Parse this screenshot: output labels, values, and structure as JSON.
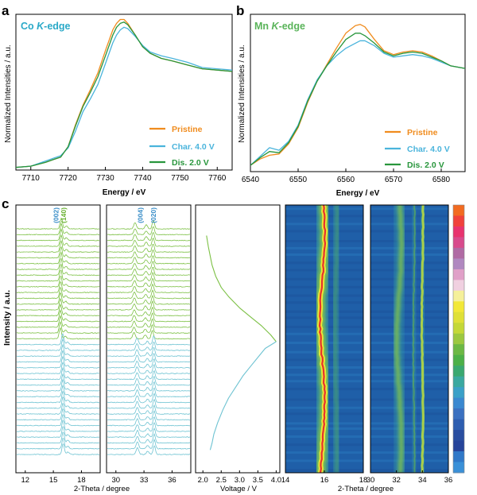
{
  "panel_labels": {
    "a": "a",
    "b": "b",
    "c": "c"
  },
  "colors": {
    "pristine": "#f08c1e",
    "charge": "#4ab4dc",
    "discharge": "#28963c",
    "xrd_green": "#7cc044",
    "xrd_cyan": "#6ec3d2",
    "co_title": "#2aa9c8",
    "mn_title": "#5ab45a",
    "peak_label_green": "#68b030",
    "peak_label_blue": "#3a8ec8",
    "map_bg": "#1f5fa8"
  },
  "chart_data": [
    {
      "id": "a",
      "type": "line",
      "title_prefix": "Co ",
      "title_k": "K",
      "title_suffix": "-edge",
      "xlabel": "Energy / eV",
      "ylabel": "Normalized Intensities / a.u.",
      "xlim": [
        7706,
        7764
      ],
      "ylim": [
        0,
        1.2
      ],
      "xticks": [
        "7710",
        "7720",
        "7730",
        "7740",
        "7750",
        "7760"
      ],
      "xtick_values": [
        7710,
        7720,
        7730,
        7740,
        7750,
        7760
      ],
      "legend": [
        "Pristine",
        "Char. 4.0 V",
        "Dis. 2.0 V"
      ],
      "series": [
        {
          "name": "Pristine",
          "x": [
            7706,
            7710,
            7714,
            7716,
            7718,
            7720,
            7722,
            7724,
            7726,
            7728,
            7730,
            7732,
            7733,
            7734,
            7735,
            7736,
            7738,
            7740,
            7742,
            7745,
            7748,
            7752,
            7756,
            7760,
            7764
          ],
          "y": [
            0.02,
            0.03,
            0.06,
            0.08,
            0.1,
            0.18,
            0.35,
            0.5,
            0.62,
            0.75,
            0.92,
            1.08,
            1.13,
            1.16,
            1.16,
            1.13,
            1.04,
            0.95,
            0.9,
            0.86,
            0.84,
            0.81,
            0.78,
            0.77,
            0.76
          ]
        },
        {
          "name": "Char. 4.0 V",
          "x": [
            7706,
            7710,
            7714,
            7716,
            7718,
            7720,
            7722,
            7724,
            7726,
            7728,
            7730,
            7732,
            7733,
            7734,
            7735,
            7736,
            7738,
            7740,
            7742,
            7745,
            7748,
            7752,
            7756,
            7760,
            7764
          ],
          "y": [
            0.02,
            0.03,
            0.07,
            0.09,
            0.11,
            0.17,
            0.3,
            0.45,
            0.55,
            0.66,
            0.82,
            0.98,
            1.04,
            1.08,
            1.1,
            1.09,
            1.03,
            0.96,
            0.91,
            0.88,
            0.86,
            0.83,
            0.79,
            0.78,
            0.77
          ]
        },
        {
          "name": "Dis. 2.0 V",
          "x": [
            7706,
            7710,
            7714,
            7716,
            7718,
            7720,
            7722,
            7724,
            7726,
            7728,
            7730,
            7732,
            7733,
            7734,
            7735,
            7736,
            7738,
            7740,
            7742,
            7745,
            7748,
            7752,
            7756,
            7760,
            7764
          ],
          "y": [
            0.02,
            0.03,
            0.06,
            0.08,
            0.1,
            0.18,
            0.34,
            0.49,
            0.6,
            0.72,
            0.88,
            1.04,
            1.1,
            1.13,
            1.14,
            1.12,
            1.04,
            0.95,
            0.9,
            0.86,
            0.84,
            0.81,
            0.78,
            0.77,
            0.76
          ]
        }
      ]
    },
    {
      "id": "b",
      "type": "line",
      "title_prefix": "Mn ",
      "title_k": "K",
      "title_suffix": "-edge",
      "xlabel": "Energy / eV",
      "ylabel": "Normalized Intensities / a.u.",
      "xlim": [
        6540,
        6585
      ],
      "ylim": [
        0,
        1.25
      ],
      "xticks": [
        "6540",
        "6550",
        "6560",
        "6570",
        "6580"
      ],
      "xtick_values": [
        6540,
        6550,
        6560,
        6570,
        6580
      ],
      "legend": [
        "Pristine",
        "Char. 4.0 V",
        "Dis. 2.0 V"
      ],
      "series": [
        {
          "name": "Pristine",
          "x": [
            6540,
            6542,
            6544,
            6546,
            6548,
            6550,
            6552,
            6554,
            6556,
            6558,
            6560,
            6562,
            6563,
            6564,
            6566,
            6568,
            6570,
            6572,
            6574,
            6576,
            6578,
            6580,
            6582,
            6585
          ],
          "y": [
            0.05,
            0.1,
            0.13,
            0.14,
            0.22,
            0.35,
            0.55,
            0.72,
            0.85,
            0.98,
            1.1,
            1.16,
            1.17,
            1.15,
            1.05,
            0.96,
            0.93,
            0.95,
            0.96,
            0.95,
            0.92,
            0.88,
            0.84,
            0.82
          ]
        },
        {
          "name": "Char. 4.0 V",
          "x": [
            6540,
            6542,
            6544,
            6546,
            6548,
            6550,
            6552,
            6554,
            6556,
            6558,
            6560,
            6562,
            6563,
            6564,
            6566,
            6568,
            6570,
            6572,
            6574,
            6576,
            6578,
            6580,
            6582,
            6585
          ],
          "y": [
            0.05,
            0.12,
            0.19,
            0.17,
            0.24,
            0.37,
            0.57,
            0.73,
            0.84,
            0.92,
            0.98,
            1.02,
            1.04,
            1.04,
            1.0,
            0.94,
            0.91,
            0.92,
            0.93,
            0.92,
            0.9,
            0.87,
            0.84,
            0.82
          ]
        },
        {
          "name": "Dis. 2.0 V",
          "x": [
            6540,
            6542,
            6544,
            6546,
            6548,
            6550,
            6552,
            6554,
            6556,
            6558,
            6560,
            6562,
            6563,
            6564,
            6566,
            6568,
            6570,
            6572,
            6574,
            6576,
            6578,
            6580,
            6582,
            6585
          ],
          "y": [
            0.05,
            0.11,
            0.16,
            0.15,
            0.23,
            0.36,
            0.56,
            0.72,
            0.84,
            0.95,
            1.05,
            1.1,
            1.1,
            1.08,
            1.02,
            0.95,
            0.92,
            0.94,
            0.95,
            0.94,
            0.91,
            0.88,
            0.84,
            0.82
          ]
        }
      ]
    },
    {
      "id": "c1",
      "type": "line",
      "xlabel": "2-Theta / degree",
      "ylabel": "Intensity / a.u.",
      "xlim": [
        11,
        20
      ],
      "xticks": [
        "12",
        "15",
        "18"
      ],
      "xtick_values": [
        12,
        15,
        18
      ],
      "peak_labels": [
        {
          "text": "(002)",
          "x": 15.3,
          "color_key": "peak_label_blue"
        },
        {
          "text": "(140)",
          "x": 16.1,
          "color_key": "peak_label_green"
        }
      ],
      "pattern_count": 40,
      "green_count": 20,
      "peaks_green": [
        {
          "pos": 15.85,
          "h": 1.0,
          "w": 0.12
        },
        {
          "pos": 16.4,
          "h": 0.25,
          "w": 0.14
        }
      ],
      "peaks_cyan": [
        {
          "pos": 16.05,
          "h": 1.0,
          "w": 0.12
        },
        {
          "pos": 16.55,
          "h": 0.22,
          "w": 0.14
        }
      ]
    },
    {
      "id": "c2",
      "type": "line",
      "xlim": [
        29,
        38
      ],
      "xticks": [
        "30",
        "33",
        "36"
      ],
      "xtick_values": [
        30,
        33,
        36
      ],
      "peak_labels": [
        {
          "text": "(004)",
          "x": 32.6,
          "color_key": "peak_label_blue"
        },
        {
          "text": "(020)",
          "x": 34.0,
          "color_key": "peak_label_blue"
        }
      ],
      "peaks_green": [
        {
          "pos": 32.05,
          "h": 0.55,
          "w": 0.14
        },
        {
          "pos": 33.25,
          "h": 0.35,
          "w": 0.14
        },
        {
          "pos": 34.0,
          "h": 0.75,
          "w": 0.12
        }
      ],
      "peaks_cyan": [
        {
          "pos": 32.3,
          "h": 0.6,
          "w": 0.14
        },
        {
          "pos": 33.4,
          "h": 0.3,
          "w": 0.14
        },
        {
          "pos": 34.1,
          "h": 0.8,
          "w": 0.12
        }
      ]
    },
    {
      "id": "c3",
      "type": "line",
      "xlabel": "Voltage / V",
      "xlim": [
        1.8,
        4.1
      ],
      "xticks": [
        "2.0",
        "2.5",
        "3.0",
        "3.5",
        "4.0"
      ],
      "xtick_values": [
        2.0,
        2.5,
        3.0,
        3.5,
        4.0
      ],
      "series": [
        {
          "name": "discharge",
          "color_key": "xrd_green",
          "voltage": [
            4.0,
            3.85,
            3.6,
            3.3,
            3.0,
            2.7,
            2.5,
            2.35,
            2.25,
            2.2,
            2.15,
            2.12,
            2.1
          ],
          "progress": [
            0.5,
            0.47,
            0.43,
            0.39,
            0.35,
            0.3,
            0.26,
            0.21,
            0.16,
            0.12,
            0.08,
            0.05,
            0.03
          ]
        },
        {
          "name": "charge",
          "color_key": "xrd_cyan",
          "voltage": [
            4.0,
            3.7,
            3.5,
            3.3,
            3.1,
            2.9,
            2.7,
            2.55,
            2.4,
            2.3,
            2.25,
            2.2
          ],
          "progress": [
            0.5,
            0.53,
            0.57,
            0.61,
            0.65,
            0.7,
            0.75,
            0.8,
            0.86,
            0.91,
            0.95,
            0.98
          ]
        }
      ]
    },
    {
      "id": "c4",
      "type": "heatmap",
      "xlabel": "2-Theta / degree",
      "xlim": [
        14,
        18
      ],
      "xticks": [
        "14",
        "16",
        "18"
      ],
      "xtick_values": [
        14,
        16,
        18
      ]
    },
    {
      "id": "c5",
      "type": "heatmap",
      "xlim": [
        30,
        36
      ],
      "xticks": [
        "30",
        "32",
        "34",
        "36"
      ],
      "xtick_values": [
        30,
        32,
        34,
        36
      ]
    },
    {
      "id": "colorbar",
      "type": "heatmap",
      "colors": [
        "#f26b21",
        "#f0423c",
        "#e8336e",
        "#d84a8c",
        "#b06aa4",
        "#b088c0",
        "#e0a0c8",
        "#f0d0e0",
        "#f5f09a",
        "#f2e838",
        "#dfe038",
        "#c4d838",
        "#9cc840",
        "#6cb844",
        "#4cb048",
        "#3aa870",
        "#3aa8a0",
        "#3aa0c8",
        "#3a88d0",
        "#3a70c0",
        "#2e5eb0",
        "#2a4ea0",
        "#26449a",
        "#3078c8",
        "#3a90d8"
      ]
    }
  ]
}
